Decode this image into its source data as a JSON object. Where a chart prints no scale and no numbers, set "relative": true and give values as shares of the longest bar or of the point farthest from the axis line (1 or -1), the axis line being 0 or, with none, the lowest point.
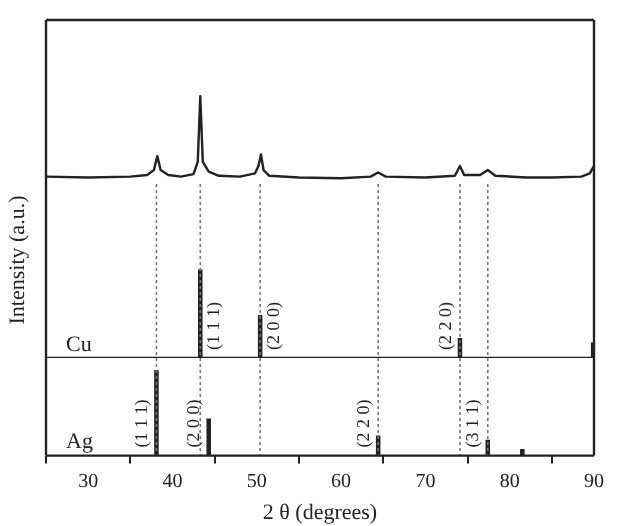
{
  "chart_data": [
    {
      "type": "line",
      "ylabel": "Intensity (a.u.)",
      "relative": true,
      "xlim": [
        25,
        90
      ],
      "tick_labels": false,
      "legend": false,
      "marker": "none",
      "line_style": "solid",
      "grid": false,
      "series": [
        {
          "color": "#222222",
          "x": [
            25,
            30,
            35,
            37,
            37.8,
            38.2,
            38.6,
            39.5,
            41,
            42.5,
            43.0,
            43.3,
            43.6,
            44.3,
            45.5,
            48,
            49.8,
            50.2,
            50.5,
            50.8,
            51.5,
            55,
            60,
            63.5,
            64.4,
            65.3,
            70,
            73.5,
            74.1,
            74.6,
            76.5,
            77.4,
            78.3,
            82,
            85,
            88.5,
            89.5,
            90
          ],
          "values": [
            0.02,
            0.01,
            0.02,
            0.04,
            0.1,
            0.27,
            0.1,
            0.04,
            0.02,
            0.05,
            0.2,
            1.0,
            0.2,
            0.08,
            0.03,
            0.02,
            0.06,
            0.15,
            0.29,
            0.1,
            0.03,
            0.01,
            0.0,
            0.02,
            0.07,
            0.02,
            0.01,
            0.03,
            0.15,
            0.04,
            0.04,
            0.1,
            0.03,
            0.01,
            0.01,
            0.02,
            0.06,
            0.15
          ]
        }
      ]
    },
    {
      "type": "bar",
      "relative": true,
      "xlim": [
        25,
        90
      ],
      "tick_labels": false,
      "legend": false,
      "grid": false,
      "series": [
        {
          "name": "Cu",
          "color": "#222222",
          "x": [
            43.3,
            50.4,
            74.1,
            89.9
          ],
          "values": [
            1.0,
            0.48,
            0.22,
            0.17
          ]
        }
      ],
      "annotations": [
        "(1 1 1)",
        "(2 0 0)",
        "(2 2 0)"
      ],
      "ref_lines": [
        {
          "axis": "x",
          "value": 38.1,
          "line_style": "dotted",
          "color": "#777777"
        },
        {
          "axis": "x",
          "value": 43.3,
          "line_style": "dotted",
          "color": "#777777"
        },
        {
          "axis": "x",
          "value": 50.4,
          "line_style": "dotted",
          "color": "#777777"
        },
        {
          "axis": "x",
          "value": 64.4,
          "line_style": "dotted",
          "color": "#777777"
        },
        {
          "axis": "x",
          "value": 74.1,
          "line_style": "dotted",
          "color": "#777777"
        },
        {
          "axis": "x",
          "value": 77.4,
          "line_style": "dotted",
          "color": "#777777"
        }
      ]
    },
    {
      "type": "bar",
      "relative": true,
      "xlabel": "2 θ (degrees)",
      "xlim": [
        25,
        90
      ],
      "xticks": [
        30,
        40,
        50,
        60,
        70,
        80,
        90
      ],
      "tick_labels": "x",
      "legend": false,
      "grid": false,
      "series": [
        {
          "name": "Ag",
          "color": "#222222",
          "x": [
            38.1,
            44.3,
            64.4,
            77.4,
            81.5
          ],
          "values": [
            1.0,
            0.43,
            0.23,
            0.18,
            0.07
          ]
        }
      ],
      "annotations": [
        "(1 1 1)",
        "(2 0 0)",
        "(2 2 0)",
        "(3 1 1)"
      ],
      "ref_lines": [
        {
          "axis": "x",
          "value": 38.1,
          "line_style": "dotted",
          "color": "#777777"
        },
        {
          "axis": "x",
          "value": 43.3,
          "line_style": "dotted",
          "color": "#777777"
        },
        {
          "axis": "x",
          "value": 50.4,
          "line_style": "dotted",
          "color": "#777777"
        },
        {
          "axis": "x",
          "value": 64.4,
          "line_style": "dotted",
          "color": "#777777"
        },
        {
          "axis": "x",
          "value": 74.1,
          "line_style": "dotted",
          "color": "#777777"
        },
        {
          "axis": "x",
          "value": 77.4,
          "line_style": "dotted",
          "color": "#777777"
        }
      ]
    }
  ]
}
